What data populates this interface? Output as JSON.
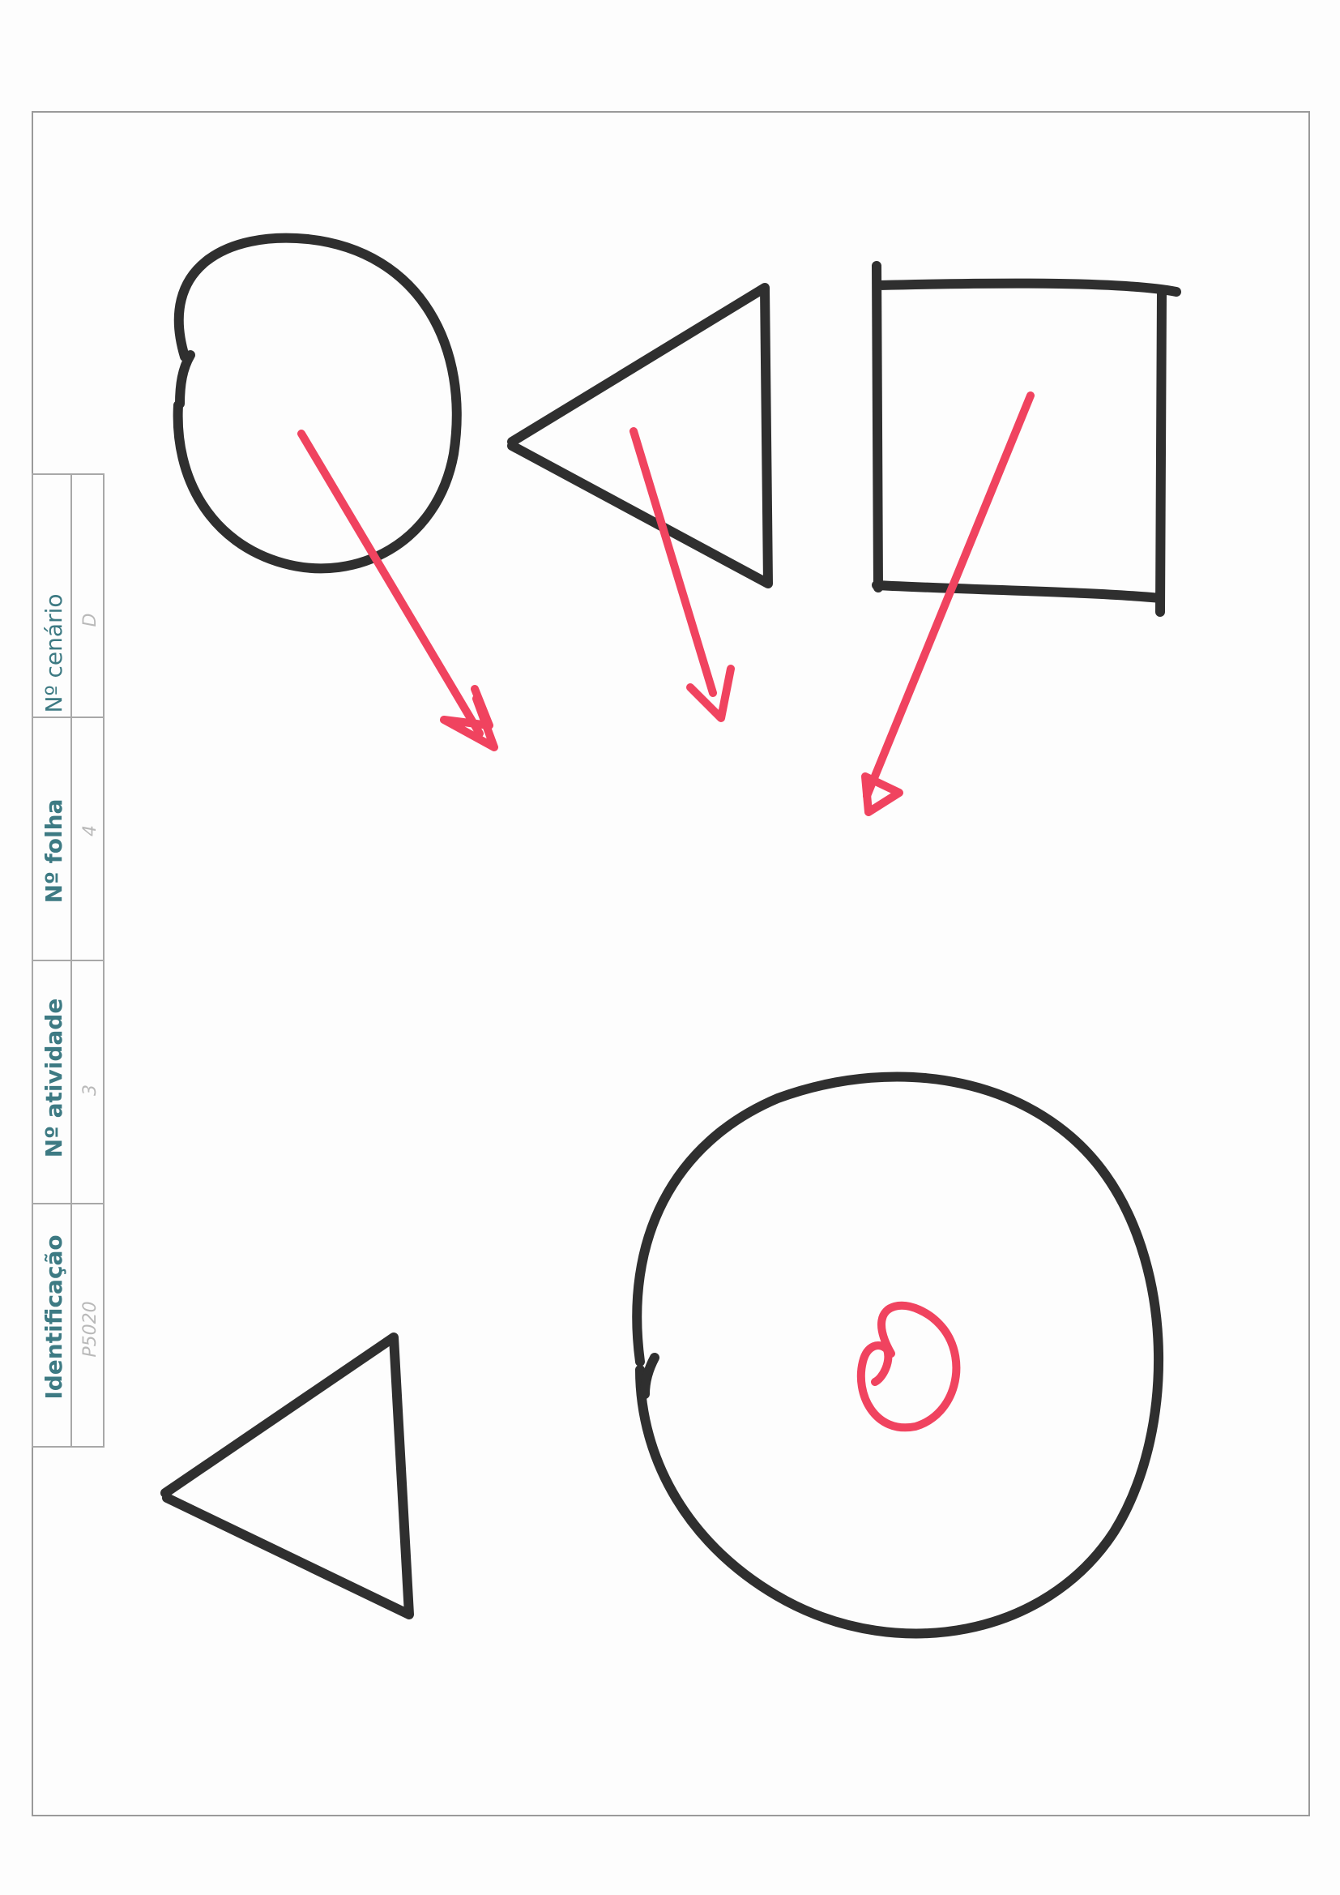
{
  "form": {
    "headers": {
      "identificacao": "Identificação",
      "atividade": "Nº atividade",
      "folha": "Nº folha",
      "cenario": "Nº cenário"
    },
    "values": {
      "identificacao": "P5020",
      "atividade": "3",
      "folha": "4",
      "cenario": "D"
    }
  },
  "colors": {
    "ink": "#2f2f2f",
    "marker": "#f0435f",
    "header_text": "#3d7a83"
  }
}
